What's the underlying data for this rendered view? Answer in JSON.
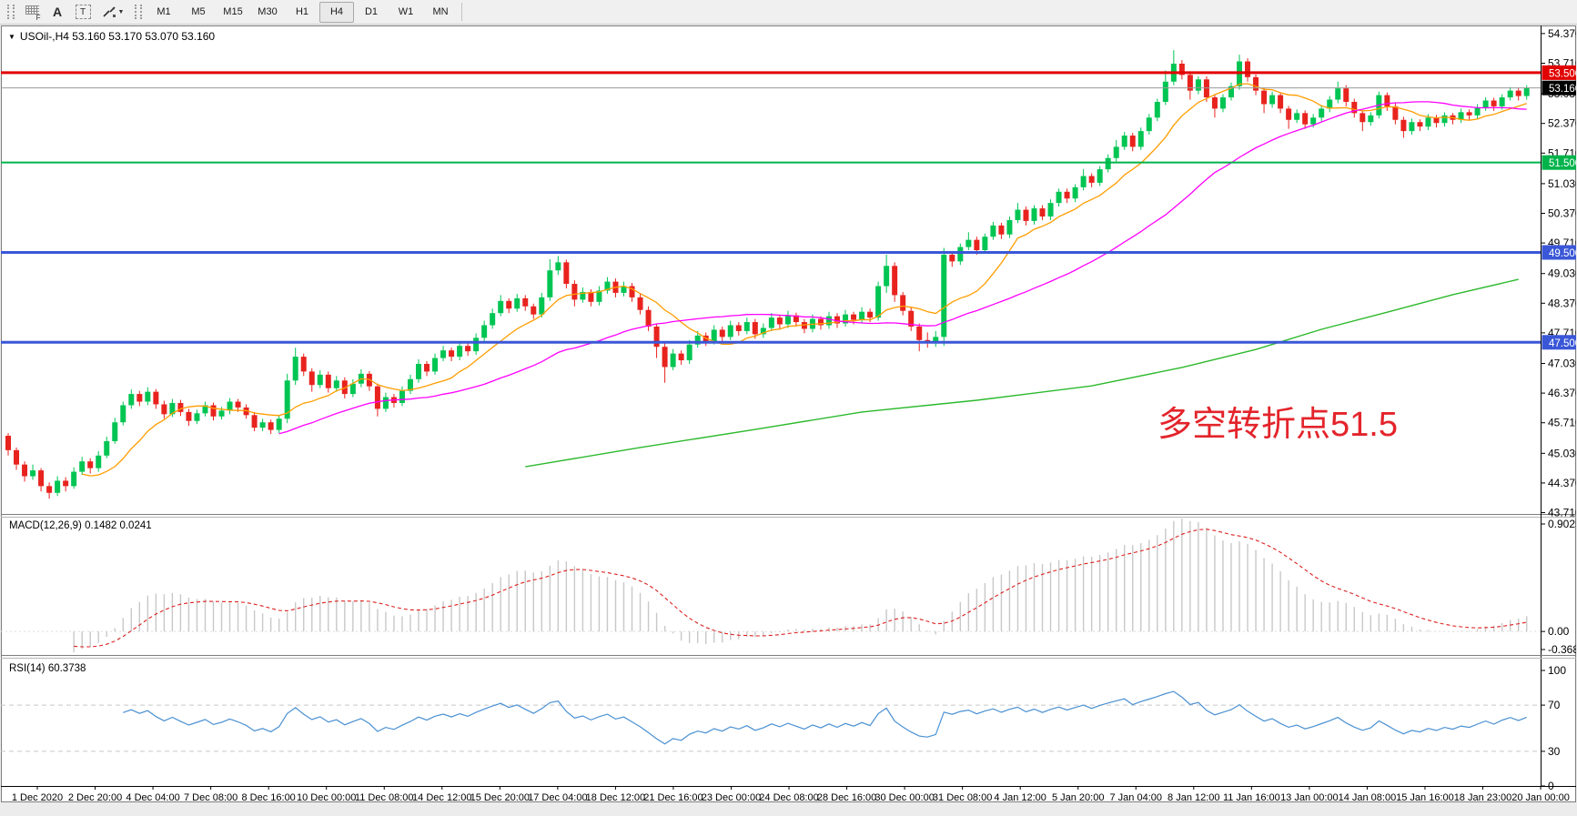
{
  "toolbar": {
    "grid_icon_label": "F",
    "text_label_icon": "A",
    "text_box_icon": "T",
    "timeframes": [
      {
        "label": "M1",
        "active": false
      },
      {
        "label": "M5",
        "active": false
      },
      {
        "label": "M15",
        "active": false
      },
      {
        "label": "M30",
        "active": false
      },
      {
        "label": "H1",
        "active": false
      },
      {
        "label": "H4",
        "active": true
      },
      {
        "label": "D1",
        "active": false
      },
      {
        "label": "W1",
        "active": false
      },
      {
        "label": "MN",
        "active": false
      }
    ]
  },
  "chart": {
    "title": "USOil-,H4 53.160 53.170 53.070 53.160",
    "annotation": {
      "text": "多空转折点51.5",
      "color": "#e3242b"
    },
    "colors": {
      "bull": "#00c553",
      "bear": "#e8231e",
      "ma_fast": "#ff9d00",
      "ma_mid": "#ff00ff",
      "ma_slow": "#2db92d",
      "macd_hist": "#c8c8c8",
      "macd_signal": "#dd2020",
      "rsi_line": "#4a90d2",
      "current_price_line": "#9a9a9a"
    },
    "price_axis_ticks": [
      "54.370",
      "53.710",
      "53.030",
      "52.370",
      "51.710",
      "51.030",
      "50.370",
      "49.710",
      "49.030",
      "48.370",
      "47.710",
      "47.030",
      "46.370",
      "45.710",
      "45.030",
      "44.370",
      "43.710"
    ],
    "hlines": [
      {
        "price": 53.5,
        "label": "53.500",
        "line_color": "#e10000",
        "width": 3,
        "badge_bg": "#e10000",
        "badge_fg": "#ffffff"
      },
      {
        "price": 53.16,
        "label": "53.160",
        "line_color": "#9a9a9a",
        "width": 1,
        "badge_bg": "#000000",
        "badge_fg": "#ffffff"
      },
      {
        "price": 51.5,
        "label": "51.500",
        "line_color": "#00b34a",
        "width": 2,
        "badge_bg": "#00b34a",
        "badge_fg": "#ffffff"
      },
      {
        "price": 49.5,
        "label": "49.500",
        "line_color": "#3a57d7",
        "width": 3,
        "badge_bg": "#3a57d7",
        "badge_fg": "#ffffff"
      },
      {
        "price": 47.5,
        "label": "47.500",
        "line_color": "#3a57d7",
        "width": 3,
        "badge_bg": "#3a57d7",
        "badge_fg": "#ffffff"
      }
    ]
  },
  "chart_data": {
    "type": "candlestick",
    "symbol": "USOil",
    "timeframe": "H4",
    "title": "USOil-,H4 53.160 53.170 53.070 53.160",
    "ohlc_format": [
      "open",
      "high",
      "low",
      "close"
    ],
    "ohlc": [
      [
        45.42,
        45.48,
        44.98,
        45.1
      ],
      [
        45.1,
        45.16,
        44.66,
        44.78
      ],
      [
        44.78,
        44.85,
        44.4,
        44.52
      ],
      [
        44.52,
        44.78,
        44.44,
        44.65
      ],
      [
        44.65,
        44.7,
        44.18,
        44.3
      ],
      [
        44.3,
        44.38,
        44.02,
        44.15
      ],
      [
        44.15,
        44.52,
        44.08,
        44.42
      ],
      [
        44.42,
        44.5,
        44.18,
        44.3
      ],
      [
        44.3,
        44.72,
        44.24,
        44.62
      ],
      [
        44.62,
        44.95,
        44.55,
        44.85
      ],
      [
        44.85,
        44.92,
        44.58,
        44.7
      ],
      [
        44.7,
        45.08,
        44.62,
        44.98
      ],
      [
        44.98,
        45.4,
        44.92,
        45.3
      ],
      [
        45.3,
        45.82,
        45.24,
        45.72
      ],
      [
        45.72,
        46.18,
        45.65,
        46.1
      ],
      [
        46.1,
        46.45,
        46.02,
        46.35
      ],
      [
        46.35,
        46.42,
        46.08,
        46.18
      ],
      [
        46.18,
        46.5,
        46.1,
        46.4
      ],
      [
        46.4,
        46.46,
        46.02,
        46.12
      ],
      [
        46.12,
        46.2,
        45.8,
        45.9
      ],
      [
        45.9,
        46.24,
        45.84,
        46.15
      ],
      [
        46.15,
        46.22,
        45.86,
        45.95
      ],
      [
        45.95,
        46.02,
        45.64,
        45.75
      ],
      [
        45.75,
        46.0,
        45.68,
        45.92
      ],
      [
        45.92,
        46.18,
        45.85,
        46.1
      ],
      [
        46.1,
        46.16,
        45.76,
        45.85
      ],
      [
        45.85,
        46.06,
        45.78,
        45.98
      ],
      [
        45.98,
        46.26,
        45.9,
        46.18
      ],
      [
        46.18,
        46.24,
        45.95,
        46.05
      ],
      [
        46.05,
        46.12,
        45.8,
        45.88
      ],
      [
        45.88,
        45.95,
        45.52,
        45.6
      ],
      [
        45.6,
        45.8,
        45.52,
        45.72
      ],
      [
        45.72,
        45.78,
        45.46,
        45.55
      ],
      [
        45.55,
        45.88,
        45.48,
        45.8
      ],
      [
        45.8,
        46.8,
        45.7,
        46.65
      ],
      [
        46.65,
        47.38,
        46.55,
        47.18
      ],
      [
        47.18,
        47.25,
        46.75,
        46.85
      ],
      [
        46.85,
        46.92,
        46.4,
        46.55
      ],
      [
        46.55,
        46.88,
        46.48,
        46.78
      ],
      [
        46.78,
        46.85,
        46.38,
        46.48
      ],
      [
        46.48,
        46.75,
        46.4,
        46.65
      ],
      [
        46.65,
        46.72,
        46.25,
        46.35
      ],
      [
        46.35,
        46.68,
        46.28,
        46.58
      ],
      [
        46.58,
        46.9,
        46.5,
        46.8
      ],
      [
        46.8,
        46.86,
        46.42,
        46.52
      ],
      [
        46.52,
        46.58,
        45.85,
        46.02
      ],
      [
        46.02,
        46.38,
        45.95,
        46.28
      ],
      [
        46.28,
        46.35,
        46.05,
        46.15
      ],
      [
        46.15,
        46.52,
        46.08,
        46.42
      ],
      [
        46.42,
        46.78,
        46.35,
        46.68
      ],
      [
        46.68,
        47.12,
        46.6,
        47.02
      ],
      [
        47.02,
        47.08,
        46.75,
        46.85
      ],
      [
        46.85,
        47.25,
        46.78,
        47.15
      ],
      [
        47.15,
        47.42,
        47.08,
        47.32
      ],
      [
        47.32,
        47.38,
        47.08,
        47.18
      ],
      [
        47.18,
        47.52,
        47.1,
        47.42
      ],
      [
        47.42,
        47.48,
        47.2,
        47.3
      ],
      [
        47.3,
        47.7,
        47.22,
        47.6
      ],
      [
        47.6,
        47.98,
        47.52,
        47.88
      ],
      [
        47.88,
        48.25,
        47.8,
        48.15
      ],
      [
        48.15,
        48.55,
        48.08,
        48.42
      ],
      [
        48.42,
        48.48,
        48.15,
        48.25
      ],
      [
        48.25,
        48.58,
        48.18,
        48.48
      ],
      [
        48.48,
        48.55,
        48.2,
        48.3
      ],
      [
        48.3,
        48.36,
        48.02,
        48.12
      ],
      [
        48.12,
        48.6,
        48.05,
        48.5
      ],
      [
        48.5,
        49.35,
        48.42,
        49.1
      ],
      [
        49.1,
        49.42,
        49.0,
        49.28
      ],
      [
        49.28,
        49.34,
        48.7,
        48.8
      ],
      [
        48.8,
        48.88,
        48.3,
        48.45
      ],
      [
        48.45,
        48.72,
        48.38,
        48.62
      ],
      [
        48.62,
        48.68,
        48.3,
        48.4
      ],
      [
        48.4,
        48.75,
        48.32,
        48.65
      ],
      [
        48.65,
        48.95,
        48.58,
        48.85
      ],
      [
        48.85,
        48.92,
        48.5,
        48.6
      ],
      [
        48.6,
        48.85,
        48.52,
        48.75
      ],
      [
        48.75,
        48.82,
        48.4,
        48.5
      ],
      [
        48.5,
        48.58,
        48.12,
        48.22
      ],
      [
        48.22,
        48.3,
        47.75,
        47.85
      ],
      [
        47.85,
        47.92,
        47.15,
        47.4
      ],
      [
        47.4,
        47.48,
        46.6,
        46.95
      ],
      [
        46.95,
        47.35,
        46.88,
        47.25
      ],
      [
        47.25,
        47.32,
        47.0,
        47.1
      ],
      [
        47.1,
        47.55,
        47.02,
        47.45
      ],
      [
        47.45,
        47.75,
        47.38,
        47.65
      ],
      [
        47.65,
        47.72,
        47.42,
        47.52
      ],
      [
        47.52,
        47.88,
        47.45,
        47.78
      ],
      [
        47.78,
        47.85,
        47.52,
        47.62
      ],
      [
        47.62,
        47.98,
        47.55,
        47.88
      ],
      [
        47.88,
        47.95,
        47.65,
        47.75
      ],
      [
        47.75,
        48.05,
        47.68,
        47.95
      ],
      [
        47.95,
        48.02,
        47.58,
        47.68
      ],
      [
        47.68,
        47.92,
        47.6,
        47.82
      ],
      [
        47.82,
        48.15,
        47.75,
        48.05
      ],
      [
        48.05,
        48.12,
        47.8,
        47.9
      ],
      [
        47.9,
        48.2,
        47.82,
        48.1
      ],
      [
        48.1,
        48.16,
        47.85,
        47.95
      ],
      [
        47.95,
        48.02,
        47.7,
        47.8
      ],
      [
        47.8,
        48.12,
        47.72,
        48.02
      ],
      [
        48.02,
        48.08,
        47.78,
        47.88
      ],
      [
        47.88,
        48.18,
        47.8,
        48.08
      ],
      [
        48.08,
        48.15,
        47.82,
        47.92
      ],
      [
        47.92,
        48.22,
        47.85,
        48.12
      ],
      [
        48.12,
        48.18,
        47.9,
        48.0
      ],
      [
        48.0,
        48.28,
        47.92,
        48.18
      ],
      [
        48.18,
        48.25,
        47.95,
        48.05
      ],
      [
        48.05,
        48.85,
        47.98,
        48.75
      ],
      [
        48.75,
        49.45,
        48.6,
        49.2
      ],
      [
        49.2,
        49.28,
        48.4,
        48.55
      ],
      [
        48.55,
        48.62,
        48.1,
        48.2
      ],
      [
        48.2,
        48.28,
        47.75,
        47.85
      ],
      [
        47.85,
        47.92,
        47.3,
        47.55
      ],
      [
        47.55,
        47.72,
        47.38,
        47.48
      ],
      [
        47.48,
        47.75,
        47.4,
        47.62
      ],
      [
        47.62,
        49.6,
        47.42,
        49.45
      ],
      [
        49.45,
        49.52,
        49.18,
        49.3
      ],
      [
        49.3,
        49.7,
        49.22,
        49.62
      ],
      [
        49.62,
        49.95,
        49.55,
        49.78
      ],
      [
        49.78,
        49.85,
        49.45,
        49.55
      ],
      [
        49.55,
        49.92,
        49.48,
        49.85
      ],
      [
        49.85,
        50.18,
        49.78,
        50.1
      ],
      [
        50.1,
        50.16,
        49.8,
        49.9
      ],
      [
        49.9,
        50.3,
        49.82,
        50.22
      ],
      [
        50.22,
        50.6,
        50.15,
        50.45
      ],
      [
        50.45,
        50.52,
        50.1,
        50.2
      ],
      [
        50.2,
        50.55,
        50.12,
        50.48
      ],
      [
        50.48,
        50.55,
        50.22,
        50.3
      ],
      [
        50.3,
        50.68,
        50.22,
        50.6
      ],
      [
        50.6,
        50.92,
        50.52,
        50.85
      ],
      [
        50.85,
        50.92,
        50.6,
        50.7
      ],
      [
        50.7,
        51.02,
        50.62,
        50.95
      ],
      [
        50.95,
        51.35,
        50.88,
        51.2
      ],
      [
        51.2,
        51.26,
        50.95,
        51.05
      ],
      [
        51.05,
        51.42,
        50.98,
        51.35
      ],
      [
        51.35,
        51.68,
        51.28,
        51.6
      ],
      [
        51.6,
        52.0,
        51.52,
        51.85
      ],
      [
        51.85,
        52.18,
        51.78,
        52.1
      ],
      [
        52.1,
        52.16,
        51.75,
        51.85
      ],
      [
        51.85,
        52.28,
        51.78,
        52.2
      ],
      [
        52.2,
        52.58,
        52.12,
        52.5
      ],
      [
        52.5,
        52.92,
        52.42,
        52.85
      ],
      [
        52.85,
        53.55,
        52.78,
        53.3
      ],
      [
        53.3,
        54.0,
        53.22,
        53.7
      ],
      [
        53.7,
        53.78,
        53.35,
        53.45
      ],
      [
        53.45,
        53.52,
        52.9,
        53.1
      ],
      [
        53.1,
        53.42,
        53.02,
        53.35
      ],
      [
        53.35,
        53.42,
        52.85,
        52.95
      ],
      [
        52.95,
        53.02,
        52.5,
        52.7
      ],
      [
        52.7,
        53.02,
        52.62,
        52.95
      ],
      [
        52.95,
        53.28,
        52.88,
        53.2
      ],
      [
        53.2,
        53.9,
        53.12,
        53.75
      ],
      [
        53.75,
        53.82,
        53.3,
        53.4
      ],
      [
        53.4,
        53.46,
        53.0,
        53.1
      ],
      [
        53.1,
        53.16,
        52.6,
        52.8
      ],
      [
        52.8,
        53.08,
        52.72,
        53.0
      ],
      [
        53.0,
        53.06,
        52.6,
        52.7
      ],
      [
        52.7,
        52.76,
        52.25,
        52.45
      ],
      [
        52.45,
        52.68,
        52.38,
        52.6
      ],
      [
        52.6,
        52.66,
        52.25,
        52.35
      ],
      [
        52.35,
        52.58,
        52.28,
        52.5
      ],
      [
        52.5,
        52.78,
        52.42,
        52.7
      ],
      [
        52.7,
        52.98,
        52.62,
        52.9
      ],
      [
        52.9,
        53.3,
        52.82,
        53.15
      ],
      [
        53.15,
        53.22,
        52.75,
        52.85
      ],
      [
        52.85,
        52.92,
        52.5,
        52.6
      ],
      [
        52.6,
        52.66,
        52.2,
        52.4
      ],
      [
        52.4,
        52.62,
        52.32,
        52.55
      ],
      [
        52.55,
        53.08,
        52.48,
        53.0
      ],
      [
        53.0,
        53.06,
        52.65,
        52.75
      ],
      [
        52.75,
        52.82,
        52.35,
        52.45
      ],
      [
        52.45,
        52.52,
        52.05,
        52.2
      ],
      [
        52.2,
        52.48,
        52.12,
        52.4
      ],
      [
        52.4,
        52.46,
        52.2,
        52.3
      ],
      [
        52.3,
        52.58,
        52.22,
        52.5
      ],
      [
        52.5,
        52.56,
        52.28,
        52.38
      ],
      [
        52.38,
        52.62,
        52.3,
        52.55
      ],
      [
        52.55,
        52.6,
        52.35,
        52.45
      ],
      [
        52.45,
        52.7,
        52.38,
        52.62
      ],
      [
        52.62,
        52.68,
        52.45,
        52.55
      ],
      [
        52.55,
        52.8,
        52.48,
        52.72
      ],
      [
        52.72,
        52.95,
        52.65,
        52.88
      ],
      [
        52.88,
        52.94,
        52.65,
        52.75
      ],
      [
        52.75,
        53.02,
        52.68,
        52.95
      ],
      [
        52.95,
        53.18,
        52.88,
        53.1
      ],
      [
        53.1,
        53.16,
        52.88,
        52.98
      ],
      [
        52.98,
        53.22,
        52.9,
        53.16
      ]
    ],
    "x_labels": [
      "1 Dec 2020",
      "2 Dec 20:00",
      "4 Dec 04:00",
      "7 Dec 08:00",
      "8 Dec 16:00",
      "10 Dec 00:00",
      "11 Dec 08:00",
      "14 Dec 12:00",
      "15 Dec 20:00",
      "17 Dec 04:00",
      "18 Dec 12:00",
      "21 Dec 16:00",
      "23 Dec 00:00",
      "24 Dec 08:00",
      "28 Dec 16:00",
      "30 Dec 00:00",
      "31 Dec 08:00",
      "4 Jan 12:00",
      "5 Jan 20:00",
      "7 Jan 04:00",
      "8 Jan 12:00",
      "11 Jan 16:00",
      "13 Jan 00:00",
      "14 Jan 08:00",
      "15 Jan 16:00",
      "18 Jan 23:00",
      "20 Jan 00:00"
    ],
    "y_axis_range": [
      43.68,
      54.55
    ],
    "overlays": [
      {
        "name": "ma-fast",
        "type": "sma",
        "period": 10,
        "color": "#ff9d00"
      },
      {
        "name": "ma-mid",
        "type": "sma",
        "period": 34,
        "color": "#ff00ff"
      },
      {
        "name": "ma-slow",
        "type": "polyline-index-price",
        "color": "#2db92d",
        "points": [
          [
            63,
            44.73
          ],
          [
            77,
            45.16
          ],
          [
            91,
            45.56
          ],
          [
            104,
            45.95
          ],
          [
            118,
            46.21
          ],
          [
            132,
            46.53
          ],
          [
            143,
            46.94
          ],
          [
            152,
            47.34
          ],
          [
            160,
            47.79
          ],
          [
            168,
            48.17
          ],
          [
            176,
            48.56
          ],
          [
            184,
            48.9
          ]
        ]
      }
    ],
    "indicators": [
      {
        "name": "MACD",
        "label": "MACD(12,26,9) 0.1482 0.0241",
        "params": [
          12,
          26,
          9
        ],
        "current_values": [
          0.1482,
          0.0241
        ],
        "axis_labels": [
          "0.9025",
          "0.00",
          "-0.3688"
        ]
      },
      {
        "name": "RSI",
        "label": "RSI(14) 60.3738",
        "period": 14,
        "current_value": 60.3738,
        "axis_labels": [
          "100",
          "70",
          "30",
          "0"
        ],
        "levels": [
          70,
          30
        ]
      }
    ]
  }
}
